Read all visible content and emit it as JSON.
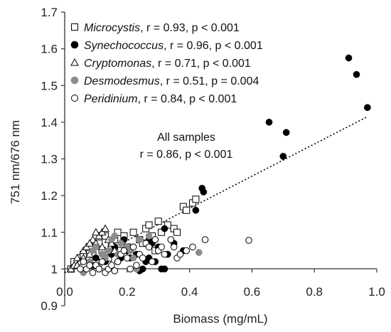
{
  "chart_data": {
    "type": "scatter",
    "xlabel": "Biomass (mg/mL)",
    "ylabel": "751 nm/676 nm",
    "xlim": [
      0,
      1.0
    ],
    "ylim": [
      0.9,
      1.7
    ],
    "x_ticks": [
      "0.0",
      "0.2",
      "0.4",
      "0.6",
      "0.8",
      "1.0"
    ],
    "y_ticks": [
      "0.9",
      "1",
      "1.1",
      "1.2",
      "1.3",
      "1.4",
      "1.5",
      "1.6",
      "1.7"
    ],
    "grid": false,
    "legend_position": "top-left",
    "legend": [
      {
        "series": "Microcystis",
        "name": "Microcystis",
        "stat": ", r = 0.93, p < 0.001"
      },
      {
        "series": "Synechococcus",
        "name": "Synechococcus",
        "stat": ", r = 0.96, p < 0.001"
      },
      {
        "series": "Cryptomonas",
        "name": "Cryptomonas",
        "stat": ", r = 0.71, p < 0.001"
      },
      {
        "series": "Desmodesmus",
        "name": "Desmodesmus",
        "stat": ", r = 0.51, p = 0.004"
      },
      {
        "series": "Peridinium",
        "name": "Peridinium",
        "stat": ", r = 0.84, p < 0.001"
      }
    ],
    "annotation": {
      "line1": "All samples",
      "line2": "r = 0.86, p < 0.001"
    },
    "trendline": {
      "style": "dotted",
      "x": [
        0.0,
        0.97
      ],
      "y": [
        0.99,
        1.415
      ]
    },
    "series": [
      {
        "name": "Microcystis",
        "marker": "open-square",
        "color": "#000000",
        "points": [
          [
            0.02,
            1.0
          ],
          [
            0.03,
            1.02
          ],
          [
            0.05,
            1.03
          ],
          [
            0.06,
            1.04
          ],
          [
            0.08,
            1.06
          ],
          [
            0.09,
            1.04
          ],
          [
            0.1,
            1.02
          ],
          [
            0.11,
            1.07
          ],
          [
            0.12,
            1.05
          ],
          [
            0.13,
            1.09
          ],
          [
            0.14,
            1.03
          ],
          [
            0.15,
            1.06
          ],
          [
            0.16,
            1.08
          ],
          [
            0.17,
            1.1
          ],
          [
            0.18,
            1.05
          ],
          [
            0.19,
            1.09
          ],
          [
            0.2,
            1.06
          ],
          [
            0.21,
            1.04
          ],
          [
            0.22,
            1.1
          ],
          [
            0.24,
            1.08
          ],
          [
            0.25,
            1.07
          ],
          [
            0.26,
            1.11
          ],
          [
            0.27,
            1.12
          ],
          [
            0.28,
            1.09
          ],
          [
            0.29,
            1.05
          ],
          [
            0.3,
            1.13
          ],
          [
            0.31,
            1.1
          ],
          [
            0.33,
            1.12
          ],
          [
            0.35,
            1.11
          ],
          [
            0.36,
            1.1
          ],
          [
            0.38,
            1.17
          ],
          [
            0.39,
            1.16
          ],
          [
            0.41,
            1.18
          ],
          [
            0.42,
            1.19
          ]
        ]
      },
      {
        "name": "Synechococcus",
        "marker": "filled-circle",
        "color": "#000000",
        "points": [
          [
            0.91,
            1.575
          ],
          [
            0.935,
            1.53
          ],
          [
            0.97,
            1.44
          ],
          [
            0.655,
            1.4
          ],
          [
            0.71,
            1.372
          ],
          [
            0.7,
            1.307
          ],
          [
            0.44,
            1.22
          ],
          [
            0.445,
            1.21
          ],
          [
            0.42,
            1.16
          ],
          [
            0.32,
            1.11
          ],
          [
            0.3,
            1.06
          ],
          [
            0.28,
            1.07
          ],
          [
            0.27,
            1.03
          ],
          [
            0.26,
            1.02
          ],
          [
            0.25,
            1.0
          ],
          [
            0.24,
            0.995
          ],
          [
            0.23,
            1.04
          ],
          [
            0.22,
            1.06
          ],
          [
            0.21,
            1.03
          ],
          [
            0.2,
            1.05
          ],
          [
            0.19,
            1.08
          ],
          [
            0.18,
            1.03
          ],
          [
            0.17,
            1.02
          ],
          [
            0.16,
            1.06
          ],
          [
            0.15,
            1.04
          ],
          [
            0.14,
            1.05
          ],
          [
            0.13,
            1.02
          ],
          [
            0.12,
            1.04
          ],
          [
            0.11,
            1.0
          ],
          [
            0.1,
            1.03
          ],
          [
            0.09,
            1.01
          ],
          [
            0.32,
            1.0
          ],
          [
            0.35,
            1.07
          ],
          [
            0.38,
            1.05
          ],
          [
            0.31,
            1.0
          ],
          [
            0.27,
            1.08
          ],
          [
            0.29,
            1.02
          ],
          [
            0.33,
            1.04
          ]
        ]
      },
      {
        "name": "Cryptomonas",
        "marker": "open-triangle",
        "color": "#000000",
        "points": [
          [
            0.02,
            1.0
          ],
          [
            0.03,
            1.01
          ],
          [
            0.04,
            1.03
          ],
          [
            0.05,
            1.02
          ],
          [
            0.06,
            1.05
          ],
          [
            0.07,
            1.06
          ],
          [
            0.08,
            1.04
          ],
          [
            0.09,
            1.08
          ],
          [
            0.1,
            1.07
          ],
          [
            0.11,
            1.09
          ],
          [
            0.12,
            1.1
          ],
          [
            0.13,
            1.11
          ],
          [
            0.14,
            1.08
          ],
          [
            0.15,
            1.07
          ],
          [
            0.16,
            1.05
          ],
          [
            0.06,
            1.03
          ],
          [
            0.08,
            1.07
          ],
          [
            0.1,
            1.1
          ],
          [
            0.12,
            1.06
          ],
          [
            0.04,
            1.01
          ]
        ]
      },
      {
        "name": "Desmodesmus",
        "marker": "filled-circle",
        "color": "#8c8c8c",
        "points": [
          [
            0.06,
            0.99
          ],
          [
            0.08,
            1.02
          ],
          [
            0.09,
            1.05
          ],
          [
            0.1,
            1.06
          ],
          [
            0.12,
            1.04
          ],
          [
            0.13,
            1.03
          ],
          [
            0.15,
            1.08
          ],
          [
            0.16,
            1.09
          ],
          [
            0.18,
            1.07
          ],
          [
            0.2,
            1.06
          ],
          [
            0.22,
            1.03
          ],
          [
            0.23,
            1.0
          ],
          [
            0.24,
            1.08
          ],
          [
            0.27,
            1.09
          ],
          [
            0.29,
            1.08
          ],
          [
            0.43,
            1.045
          ],
          [
            0.11,
            1.01
          ],
          [
            0.14,
            1.05
          ],
          [
            0.17,
            1.04
          ],
          [
            0.21,
            1.05
          ]
        ]
      },
      {
        "name": "Peridinium",
        "marker": "open-circle",
        "color": "#000000",
        "points": [
          [
            0.05,
            1.0
          ],
          [
            0.06,
            1.02
          ],
          [
            0.07,
            1.0
          ],
          [
            0.08,
            1.01
          ],
          [
            0.09,
            0.99
          ],
          [
            0.1,
            1.01
          ],
          [
            0.11,
            1.0
          ],
          [
            0.12,
            1.02
          ],
          [
            0.13,
            0.99
          ],
          [
            0.14,
            1.0
          ],
          [
            0.15,
            1.01
          ],
          [
            0.16,
            0.995
          ],
          [
            0.17,
            1.02
          ],
          [
            0.18,
            1.04
          ],
          [
            0.19,
            1.05
          ],
          [
            0.2,
            1.03
          ],
          [
            0.21,
            1.0
          ],
          [
            0.22,
            1.06
          ],
          [
            0.23,
            1.01
          ],
          [
            0.24,
            1.04
          ],
          [
            0.25,
            1.03
          ],
          [
            0.26,
            1.07
          ],
          [
            0.27,
            1.06
          ],
          [
            0.28,
            1.02
          ],
          [
            0.29,
            1.08
          ],
          [
            0.3,
            1.05
          ],
          [
            0.31,
            1.06
          ],
          [
            0.32,
            1.04
          ],
          [
            0.34,
            1.08
          ],
          [
            0.36,
            1.03
          ],
          [
            0.37,
            1.04
          ],
          [
            0.39,
            1.05
          ],
          [
            0.41,
            1.06
          ],
          [
            0.45,
            1.08
          ],
          [
            0.59,
            1.078
          ],
          [
            0.35,
            1.06
          ]
        ]
      }
    ]
  }
}
